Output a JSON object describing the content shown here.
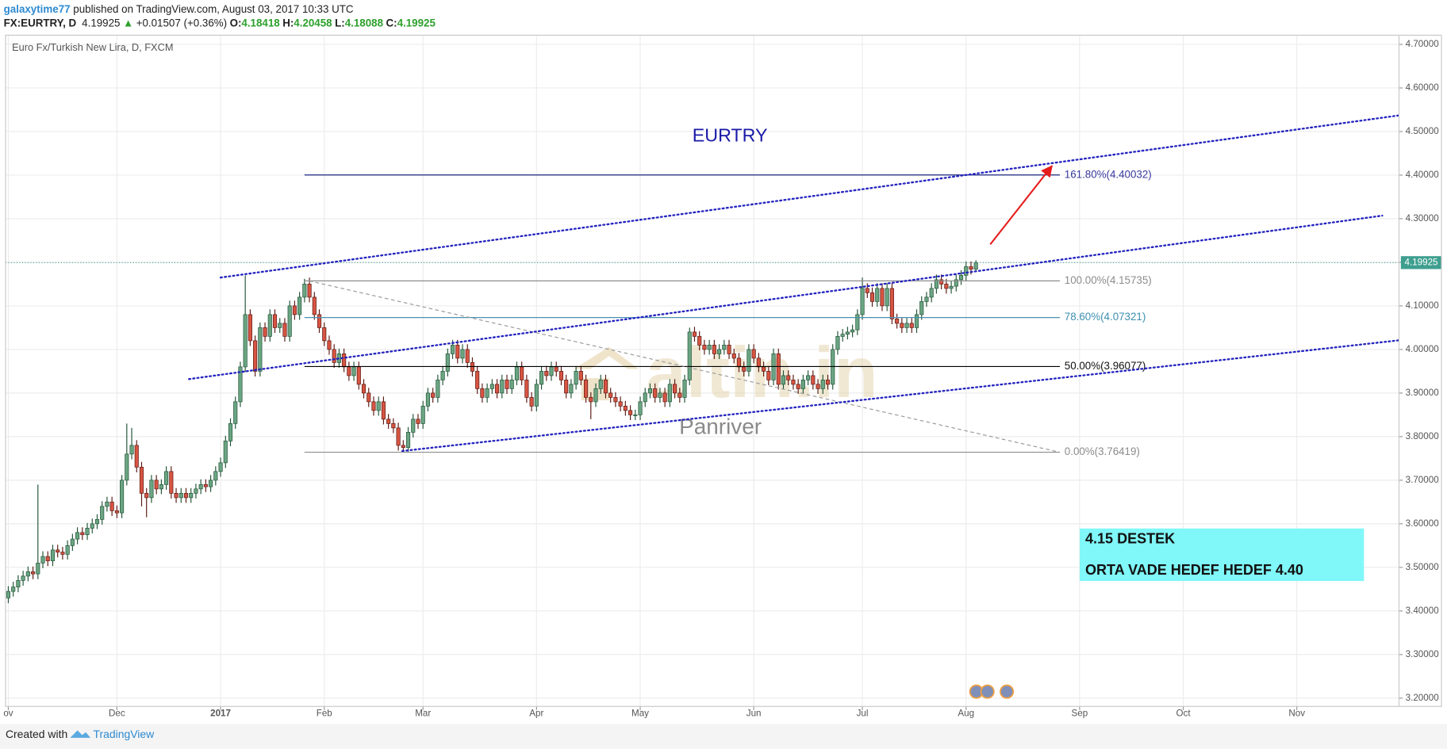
{
  "header": {
    "user": "galaxytime77",
    "published": " published on TradingView.com, August 03, 2017 10:33 UTC",
    "symbol": "FX:EURTRY, D",
    "arrow": "▲",
    "change": "+0.01507 (+0.36%)",
    "ohlc_labels": [
      "O:",
      "H:",
      "L:",
      "C:"
    ]
  },
  "footer": {
    "created": "Created with",
    "brand": "TradingView"
  },
  "chart_data": {
    "type": "candlestick",
    "title": "Euro Fx/Turkish New Lira, D, FXCM",
    "up_color": "#6ba583",
    "down_color": "#d75442",
    "up_border": "#225437",
    "down_border": "#5b1a13",
    "xlim": [
      -0.56,
      281.7
    ],
    "ylim": [
      3.181,
      4.721
    ],
    "grid": true,
    "xticks": [
      {
        "value": 0,
        "label": "ov"
      },
      {
        "value": 22,
        "label": "Dec"
      },
      {
        "value": 43,
        "label": "2017"
      },
      {
        "value": 64,
        "label": "Feb"
      },
      {
        "value": 84,
        "label": "Mar"
      },
      {
        "value": 107,
        "label": "Apr"
      },
      {
        "value": 128,
        "label": "May"
      },
      {
        "value": 151,
        "label": "Jun"
      },
      {
        "value": 173,
        "label": "Jul"
      },
      {
        "value": 194,
        "label": "Aug"
      },
      {
        "value": 217,
        "label": "Sep"
      },
      {
        "value": 238,
        "label": "Oct"
      },
      {
        "value": 261,
        "label": "Nov"
      }
    ],
    "yticks": [
      {
        "value": 3.2,
        "label": "3.20000"
      },
      {
        "value": 3.3,
        "label": "3.30000"
      },
      {
        "value": 3.4,
        "label": "3.40000"
      },
      {
        "value": 3.5,
        "label": "3.50000"
      },
      {
        "value": 3.6,
        "label": "3.60000"
      },
      {
        "value": 3.7,
        "label": "3.70000"
      },
      {
        "value": 3.8,
        "label": "3.80000"
      },
      {
        "value": 3.9,
        "label": "3.90000"
      },
      {
        "value": 4.0,
        "label": "4.00000"
      },
      {
        "value": 4.1,
        "label": "4.10000"
      },
      {
        "value": 4.2,
        "label": "4.20000"
      },
      {
        "value": 4.3,
        "label": "4.30000"
      },
      {
        "value": 4.4,
        "label": "4.40000"
      },
      {
        "value": 4.5,
        "label": "4.50000"
      },
      {
        "value": 4.6,
        "label": "4.60000"
      },
      {
        "value": 4.7,
        "label": "4.70000"
      }
    ],
    "candles": [
      [
        3.43,
        3.457,
        3.418,
        3.445
      ],
      [
        3.445,
        3.467,
        3.433,
        3.455
      ],
      [
        3.455,
        3.482,
        3.443,
        3.47
      ],
      [
        3.47,
        3.492,
        3.458,
        3.48
      ],
      [
        3.48,
        3.502,
        3.468,
        3.49
      ],
      [
        3.49,
        3.502,
        3.473,
        3.485
      ],
      [
        3.485,
        3.69,
        3.473,
        3.51
      ],
      [
        3.51,
        3.537,
        3.498,
        3.525
      ],
      [
        3.525,
        3.537,
        3.503,
        3.515
      ],
      [
        3.515,
        3.552,
        3.503,
        3.54
      ],
      [
        3.54,
        3.552,
        3.523,
        3.535
      ],
      [
        3.535,
        3.547,
        3.518,
        3.53
      ],
      [
        3.53,
        3.562,
        3.518,
        3.55
      ],
      [
        3.55,
        3.577,
        3.538,
        3.565
      ],
      [
        3.565,
        3.592,
        3.553,
        3.58
      ],
      [
        3.58,
        3.592,
        3.563,
        3.575
      ],
      [
        3.575,
        3.602,
        3.563,
        3.59
      ],
      [
        3.59,
        3.612,
        3.578,
        3.6
      ],
      [
        3.6,
        3.622,
        3.588,
        3.61
      ],
      [
        3.61,
        3.652,
        3.598,
        3.64
      ],
      [
        3.64,
        3.662,
        3.628,
        3.65
      ],
      [
        3.65,
        3.662,
        3.618,
        3.63
      ],
      [
        3.63,
        3.642,
        3.613,
        3.625
      ],
      [
        3.625,
        3.712,
        3.613,
        3.7
      ],
      [
        3.7,
        3.83,
        3.688,
        3.76
      ],
      [
        3.76,
        3.82,
        3.748,
        3.78
      ],
      [
        3.78,
        3.792,
        3.718,
        3.73
      ],
      [
        3.73,
        3.742,
        3.64,
        3.67
      ],
      [
        3.67,
        3.682,
        3.615,
        3.66
      ],
      [
        3.66,
        3.712,
        3.648,
        3.7
      ],
      [
        3.7,
        3.712,
        3.668,
        3.68
      ],
      [
        3.68,
        3.702,
        3.668,
        3.69
      ],
      [
        3.69,
        3.732,
        3.678,
        3.72
      ],
      [
        3.72,
        3.732,
        3.658,
        3.67
      ],
      [
        3.67,
        3.682,
        3.648,
        3.66
      ],
      [
        3.66,
        3.682,
        3.648,
        3.67
      ],
      [
        3.67,
        3.682,
        3.648,
        3.66
      ],
      [
        3.66,
        3.682,
        3.648,
        3.67
      ],
      [
        3.67,
        3.692,
        3.658,
        3.68
      ],
      [
        3.68,
        3.702,
        3.668,
        3.69
      ],
      [
        3.69,
        3.702,
        3.673,
        3.685
      ],
      [
        3.685,
        3.712,
        3.673,
        3.7
      ],
      [
        3.7,
        3.732,
        3.688,
        3.72
      ],
      [
        3.72,
        3.752,
        3.708,
        3.74
      ],
      [
        3.74,
        3.802,
        3.728,
        3.79
      ],
      [
        3.79,
        3.842,
        3.778,
        3.83
      ],
      [
        3.83,
        3.892,
        3.818,
        3.88
      ],
      [
        3.88,
        3.972,
        3.868,
        3.96
      ],
      [
        3.96,
        4.17,
        3.948,
        4.08
      ],
      [
        4.08,
        4.092,
        4.008,
        4.02
      ],
      [
        4.02,
        4.032,
        3.938,
        3.95
      ],
      [
        3.95,
        4.062,
        3.938,
        4.05
      ],
      [
        4.05,
        4.062,
        4.018,
        4.03
      ],
      [
        4.03,
        4.092,
        4.018,
        4.08
      ],
      [
        4.08,
        4.092,
        4.038,
        4.05
      ],
      [
        4.05,
        4.072,
        4.038,
        4.06
      ],
      [
        4.06,
        4.072,
        4.018,
        4.03
      ],
      [
        4.03,
        4.112,
        4.018,
        4.1
      ],
      [
        4.1,
        4.112,
        4.068,
        4.08
      ],
      [
        4.08,
        4.132,
        4.068,
        4.12
      ],
      [
        4.12,
        4.162,
        4.108,
        4.15
      ],
      [
        4.15,
        4.165,
        4.108,
        4.12
      ],
      [
        4.12,
        4.132,
        4.068,
        4.08
      ],
      [
        4.08,
        4.092,
        4.038,
        4.05
      ],
      [
        4.05,
        4.062,
        4.008,
        4.02
      ],
      [
        4.02,
        4.032,
        3.988,
        4.0
      ],
      [
        4.0,
        4.012,
        3.958,
        3.97
      ],
      [
        3.97,
        4.002,
        3.958,
        3.99
      ],
      [
        3.99,
        4.002,
        3.948,
        3.96
      ],
      [
        3.96,
        3.972,
        3.928,
        3.94
      ],
      [
        3.94,
        3.972,
        3.928,
        3.96
      ],
      [
        3.96,
        3.972,
        3.908,
        3.92
      ],
      [
        3.92,
        3.932,
        3.888,
        3.9
      ],
      [
        3.9,
        3.912,
        3.868,
        3.88
      ],
      [
        3.88,
        3.892,
        3.848,
        3.86
      ],
      [
        3.86,
        3.892,
        3.848,
        3.88
      ],
      [
        3.88,
        3.892,
        3.828,
        3.84
      ],
      [
        3.84,
        3.852,
        3.818,
        3.83
      ],
      [
        3.83,
        3.842,
        3.808,
        3.82
      ],
      [
        3.82,
        3.832,
        3.768,
        3.78
      ],
      [
        3.78,
        3.792,
        3.764,
        3.775
      ],
      [
        3.775,
        3.822,
        3.765,
        3.81
      ],
      [
        3.81,
        3.852,
        3.798,
        3.84
      ],
      [
        3.84,
        3.852,
        3.818,
        3.83
      ],
      [
        3.83,
        3.882,
        3.818,
        3.87
      ],
      [
        3.87,
        3.912,
        3.858,
        3.9
      ],
      [
        3.9,
        3.912,
        3.878,
        3.89
      ],
      [
        3.89,
        3.942,
        3.878,
        3.93
      ],
      [
        3.93,
        3.962,
        3.918,
        3.95
      ],
      [
        3.95,
        4.002,
        3.938,
        3.99
      ],
      [
        3.99,
        4.022,
        3.978,
        4.01
      ],
      [
        4.01,
        4.022,
        3.968,
        3.98
      ],
      [
        3.98,
        4.012,
        3.968,
        4.0
      ],
      [
        4.0,
        4.012,
        3.958,
        3.97
      ],
      [
        3.97,
        3.982,
        3.938,
        3.95
      ],
      [
        3.95,
        3.962,
        3.898,
        3.91
      ],
      [
        3.91,
        3.922,
        3.878,
        3.89
      ],
      [
        3.89,
        3.922,
        3.878,
        3.91
      ],
      [
        3.91,
        3.932,
        3.898,
        3.92
      ],
      [
        3.92,
        3.932,
        3.888,
        3.9
      ],
      [
        3.9,
        3.942,
        3.888,
        3.93
      ],
      [
        3.93,
        3.942,
        3.898,
        3.91
      ],
      [
        3.91,
        3.942,
        3.898,
        3.93
      ],
      [
        3.93,
        3.972,
        3.918,
        3.96
      ],
      [
        3.96,
        3.972,
        3.918,
        3.93
      ],
      [
        3.93,
        3.942,
        3.878,
        3.89
      ],
      [
        3.89,
        3.902,
        3.858,
        3.87
      ],
      [
        3.87,
        3.932,
        3.858,
        3.92
      ],
      [
        3.92,
        3.962,
        3.908,
        3.95
      ],
      [
        3.95,
        3.962,
        3.928,
        3.94
      ],
      [
        3.94,
        3.972,
        3.928,
        3.96
      ],
      [
        3.96,
        3.972,
        3.938,
        3.95
      ],
      [
        3.95,
        3.962,
        3.918,
        3.93
      ],
      [
        3.93,
        3.942,
        3.888,
        3.9
      ],
      [
        3.9,
        3.932,
        3.888,
        3.92
      ],
      [
        3.92,
        3.962,
        3.908,
        3.95
      ],
      [
        3.95,
        3.962,
        3.918,
        3.93
      ],
      [
        3.93,
        3.942,
        3.878,
        3.89
      ],
      [
        3.89,
        3.902,
        3.84,
        3.88
      ],
      [
        3.88,
        3.922,
        3.868,
        3.91
      ],
      [
        3.91,
        3.942,
        3.898,
        3.93
      ],
      [
        3.93,
        3.942,
        3.888,
        3.9
      ],
      [
        3.9,
        3.912,
        3.878,
        3.89
      ],
      [
        3.89,
        3.902,
        3.868,
        3.88
      ],
      [
        3.88,
        3.892,
        3.858,
        3.87
      ],
      [
        3.87,
        3.882,
        3.848,
        3.86
      ],
      [
        3.86,
        3.872,
        3.838,
        3.85
      ],
      [
        3.85,
        3.862,
        3.838,
        3.85
      ],
      [
        3.85,
        3.892,
        3.838,
        3.88
      ],
      [
        3.88,
        3.912,
        3.868,
        3.9
      ],
      [
        3.9,
        3.922,
        3.888,
        3.91
      ],
      [
        3.91,
        3.922,
        3.878,
        3.89
      ],
      [
        3.89,
        3.912,
        3.878,
        3.9
      ],
      [
        3.9,
        3.912,
        3.868,
        3.88
      ],
      [
        3.88,
        3.932,
        3.868,
        3.92
      ],
      [
        3.92,
        3.932,
        3.888,
        3.9
      ],
      [
        3.9,
        3.912,
        3.878,
        3.89
      ],
      [
        3.89,
        3.942,
        3.878,
        3.93
      ],
      [
        3.93,
        4.05,
        3.918,
        4.04
      ],
      [
        4.04,
        4.052,
        4.018,
        4.03
      ],
      [
        4.03,
        4.042,
        3.998,
        4.01
      ],
      [
        4.01,
        4.022,
        3.988,
        4.0
      ],
      [
        4.0,
        4.022,
        3.988,
        4.01
      ],
      [
        4.01,
        4.022,
        3.978,
        3.99
      ],
      [
        3.99,
        4.012,
        3.978,
        4.0
      ],
      [
        4.0,
        4.022,
        3.988,
        4.01
      ],
      [
        4.01,
        4.022,
        3.978,
        3.99
      ],
      [
        3.99,
        4.002,
        3.968,
        3.98
      ],
      [
        3.98,
        3.992,
        3.948,
        3.96
      ],
      [
        3.96,
        3.972,
        3.938,
        3.95
      ],
      [
        3.95,
        4.012,
        3.938,
        4.0
      ],
      [
        4.0,
        4.012,
        3.968,
        3.98
      ],
      [
        3.98,
        3.992,
        3.948,
        3.96
      ],
      [
        3.96,
        3.972,
        3.938,
        3.95
      ],
      [
        3.95,
        3.962,
        3.918,
        3.93
      ],
      [
        3.93,
        4.002,
        3.918,
        3.99
      ],
      [
        3.99,
        4.002,
        3.908,
        3.92
      ],
      [
        3.92,
        3.952,
        3.908,
        3.94
      ],
      [
        3.94,
        3.952,
        3.918,
        3.93
      ],
      [
        3.93,
        3.942,
        3.908,
        3.92
      ],
      [
        3.92,
        3.932,
        3.898,
        3.91
      ],
      [
        3.91,
        3.942,
        3.898,
        3.93
      ],
      [
        3.93,
        3.952,
        3.918,
        3.94
      ],
      [
        3.94,
        3.952,
        3.908,
        3.92
      ],
      [
        3.92,
        3.932,
        3.898,
        3.91
      ],
      [
        3.91,
        3.942,
        3.898,
        3.93
      ],
      [
        3.93,
        3.942,
        3.908,
        3.92
      ],
      [
        3.92,
        4.012,
        3.908,
        4.0
      ],
      [
        4.0,
        4.042,
        3.988,
        4.03
      ],
      [
        4.03,
        4.047,
        4.018,
        4.035
      ],
      [
        4.035,
        4.052,
        4.023,
        4.04
      ],
      [
        4.04,
        4.057,
        4.028,
        4.045
      ],
      [
        4.045,
        4.092,
        4.033,
        4.08
      ],
      [
        4.08,
        4.165,
        4.068,
        4.14
      ],
      [
        4.14,
        4.152,
        4.118,
        4.13
      ],
      [
        4.13,
        4.142,
        4.098,
        4.11
      ],
      [
        4.11,
        4.152,
        4.098,
        4.14
      ],
      [
        4.14,
        4.152,
        4.088,
        4.1
      ],
      [
        4.1,
        4.152,
        4.088,
        4.14
      ],
      [
        4.14,
        4.152,
        4.058,
        4.07
      ],
      [
        4.07,
        4.082,
        4.048,
        4.06
      ],
      [
        4.06,
        4.072,
        4.038,
        4.05
      ],
      [
        4.05,
        4.072,
        4.038,
        4.06
      ],
      [
        4.06,
        4.072,
        4.038,
        4.05
      ],
      [
        4.05,
        4.092,
        4.038,
        4.08
      ],
      [
        4.08,
        4.122,
        4.068,
        4.11
      ],
      [
        4.11,
        4.132,
        4.098,
        4.12
      ],
      [
        4.12,
        4.152,
        4.108,
        4.14
      ],
      [
        4.14,
        4.172,
        4.128,
        4.16
      ],
      [
        4.16,
        4.172,
        4.138,
        4.15
      ],
      [
        4.15,
        4.162,
        4.128,
        4.14
      ],
      [
        4.14,
        4.157,
        4.128,
        4.145
      ],
      [
        4.145,
        4.172,
        4.133,
        4.16
      ],
      [
        4.16,
        4.182,
        4.148,
        4.17
      ],
      [
        4.17,
        4.202,
        4.158,
        4.19
      ],
      [
        4.19,
        4.202,
        4.172,
        4.18418
      ],
      [
        4.18418,
        4.20458,
        4.18088,
        4.19925
      ]
    ],
    "fib": {
      "x": [
        60,
        213
      ],
      "levels": [
        {
          "value": 4.40032,
          "label": "161.80%(4.40032)",
          "color": "#1a237e",
          "text_color": "#3a3aa0"
        },
        {
          "value": 4.15735,
          "label": "100.00%(4.15735)",
          "color": "#8c8c8c",
          "text_color": "#8c8c8c"
        },
        {
          "value": 4.07321,
          "label": "78.60%(4.07321)",
          "color": "#4a90b0",
          "text_color": "#3d8fb0"
        },
        {
          "value": 3.96077,
          "label": "50.00%(3.96077)",
          "color": "#000000",
          "text_color": "#111111"
        },
        {
          "value": 3.76419,
          "label": "0.00%(3.76419)",
          "color": "#8c8c8c",
          "text_color": "#8c8c8c"
        }
      ]
    },
    "channels": {
      "color": "#2424c0",
      "lines": [
        {
          "from": [
            43,
            4.165
          ],
          "to": [
            281.7,
            4.537
          ]
        },
        {
          "from": [
            36.6,
            3.932
          ],
          "to": [
            278.3,
            4.307
          ]
        },
        {
          "from": [
            79.8,
            3.767
          ],
          "to": [
            281.7,
            4.021
          ]
        }
      ]
    },
    "arrow": {
      "from": [
        198.9,
        4.241
      ],
      "to": [
        211.4,
        4.421
      ],
      "color": "#e51c1c"
    },
    "price_color": "#3e9f8f",
    "annotations": {
      "name": "EURTRY",
      "note": [
        "4.15 DESTEK",
        "ORTA VADE HEDEF  HEDEF 4.40"
      ],
      "note_color": "#80f7f8"
    },
    "watermark": [
      "altin.in",
      "Panriver"
    ]
  }
}
